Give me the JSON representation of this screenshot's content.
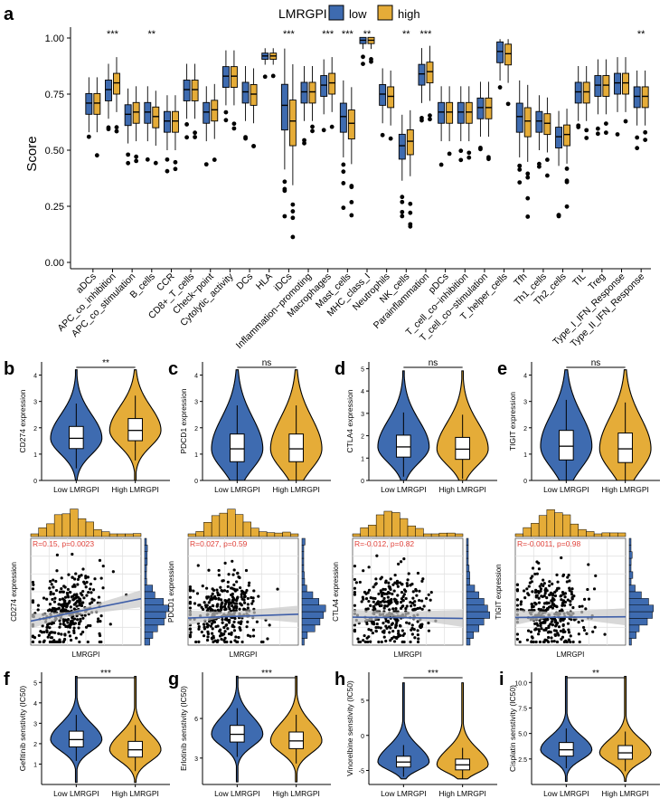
{
  "figure": {
    "panel_labels": [
      "a",
      "b",
      "c",
      "d",
      "e",
      "f",
      "g",
      "h",
      "i"
    ]
  },
  "colors": {
    "low": "#3e6bb0",
    "high": "#e5ac38",
    "stroke": "#000000",
    "fit": "#3e5ea8",
    "band": "#c8c8c8",
    "annot_red": "#e0423a"
  },
  "chart_data": [
    {
      "panel": "a",
      "type": "boxplot",
      "legend_title": "LMRGPI",
      "legend": [
        "low",
        "high"
      ],
      "ylabel": "Score",
      "ylim": [
        0,
        1.05
      ],
      "yticks": [
        "0.00",
        "0.25",
        "0.50",
        "0.75",
        "1.00"
      ],
      "categories": [
        "aDCs",
        "APC_co_inhibition",
        "APC_co_stimulation",
        "B_cells",
        "CCR",
        "CD8+_T_cells",
        "Check−point",
        "Cytolytic_activity",
        "DCs",
        "HLA",
        "iDCs",
        "Inflammation−promoting",
        "Macrophages",
        "Mast_cells",
        "MHC_class_I",
        "Neutrophils",
        "NK_cells",
        "Parainflammation",
        "pDCs",
        "T_cell_co−inhibition",
        "T_cell_co−stimulation",
        "T_helper_cells",
        "Tfh",
        "Th1_cells",
        "Th2_cells",
        "TIL",
        "Treg",
        "Type_I_IFN_Response",
        "Type_II_IFN_Response"
      ],
      "significance": [
        "",
        "***",
        "",
        "**",
        "",
        "",
        "",
        "",
        "",
        "",
        "***",
        "",
        "***",
        "***",
        "**",
        "",
        "**",
        "***",
        "",
        "",
        "",
        "",
        "",
        "",
        "",
        "",
        "",
        "",
        "**"
      ],
      "series": [
        {
          "name": "low",
          "medians": [
            0.71,
            0.77,
            0.66,
            0.67,
            0.63,
            0.77,
            0.67,
            0.83,
            0.76,
            0.92,
            0.7,
            0.76,
            0.79,
            0.65,
            0.99,
            0.75,
            0.52,
            0.84,
            0.67,
            0.67,
            0.69,
            0.94,
            0.65,
            0.63,
            0.56,
            0.76,
            0.79,
            0.8,
            0.74
          ]
        },
        {
          "name": "high",
          "medians": [
            0.71,
            0.8,
            0.67,
            0.65,
            0.63,
            0.77,
            0.68,
            0.83,
            0.75,
            0.92,
            0.63,
            0.76,
            0.8,
            0.62,
            0.99,
            0.74,
            0.54,
            0.85,
            0.67,
            0.67,
            0.69,
            0.93,
            0.63,
            0.62,
            0.57,
            0.76,
            0.79,
            0.8,
            0.74
          ]
        }
      ]
    },
    {
      "panel": "b",
      "type": "violin",
      "groups": [
        "Low LMRGPI",
        "High LMRGPI"
      ],
      "ylabel": "CD274 expression",
      "significance": "**",
      "yticks": [
        "0",
        "1",
        "2",
        "3",
        "4"
      ],
      "ylim": [
        0,
        4.5
      ],
      "medians": [
        1.6,
        1.9
      ]
    },
    {
      "panel": "c",
      "type": "violin",
      "groups": [
        "Low LMRGPI",
        "High LMRGPI"
      ],
      "ylabel": "PDCD1 expression",
      "significance": "ns",
      "yticks": [
        "0",
        "1",
        "2",
        "3",
        "4"
      ],
      "ylim": [
        0,
        4.5
      ],
      "medians": [
        1.2,
        1.2
      ]
    },
    {
      "panel": "d",
      "type": "violin",
      "groups": [
        "Low LMRGPI",
        "High LMRGPI"
      ],
      "ylabel": "CTLA4 expression",
      "significance": "ns",
      "yticks": [
        "0",
        "1",
        "2",
        "3",
        "4",
        "5"
      ],
      "ylim": [
        0,
        5.3
      ],
      "medians": [
        1.5,
        1.4
      ]
    },
    {
      "panel": "e",
      "type": "violin",
      "groups": [
        "Low LMRGPI",
        "High LMRGPI"
      ],
      "ylabel": "TIGIT expression",
      "significance": "ns",
      "yticks": [
        "0",
        "1",
        "2",
        "3",
        "4"
      ],
      "ylim": [
        0,
        4.5
      ],
      "medians": [
        1.3,
        1.2
      ]
    },
    {
      "panel": "b2",
      "type": "scatter",
      "xlabel": "LMRGPI",
      "ylabel": "CD274 expression",
      "annotation": "R=0.15, p=0.0023",
      "R": 0.15,
      "p": 0.0023
    },
    {
      "panel": "c2",
      "type": "scatter",
      "xlabel": "LMRGPI",
      "ylabel": "PDCD1 expression",
      "annotation": "R=0.027, p=0.59",
      "R": 0.027,
      "p": 0.59
    },
    {
      "panel": "d2",
      "type": "scatter",
      "xlabel": "LMRGPI",
      "ylabel": "CTLA4 expression",
      "annotation": "R=-0.012, p=0.82",
      "R": -0.012,
      "p": 0.82
    },
    {
      "panel": "e2",
      "type": "scatter",
      "xlabel": "LMRGPI",
      "ylabel": "TIGIT expression",
      "annotation": "R=-0.0011, p=0.98",
      "R": -0.0011,
      "p": 0.98
    },
    {
      "panel": "f",
      "type": "violin",
      "groups": [
        "Low LMRGPI",
        "High LMRGPI"
      ],
      "ylabel": "Gefitinib senstivity (IC50)",
      "significance": "***",
      "yticks": [
        "1",
        "2",
        "3",
        "4",
        "5"
      ],
      "ylim": [
        0,
        5.5
      ],
      "medians": [
        2.2,
        1.7
      ]
    },
    {
      "panel": "g",
      "type": "violin",
      "groups": [
        "Low LMRGPI",
        "High LMRGPI"
      ],
      "ylabel": "Erlotinib senstivity (IC50)",
      "significance": "***",
      "yticks": [
        "3",
        "6"
      ],
      "ylim": [
        1,
        9.5
      ],
      "medians": [
        4.8,
        4.3
      ]
    },
    {
      "panel": "h",
      "type": "violin",
      "groups": [
        "Low LMRGPI",
        "High LMRGPI"
      ],
      "ylabel": "Vinorelbine senstivity (IC50)",
      "significance": "***",
      "yticks": [
        "-5",
        "0",
        "5"
      ],
      "ylim": [
        -7,
        9
      ],
      "medians": [
        -3.8,
        -4.2
      ]
    },
    {
      "panel": "i",
      "type": "violin",
      "groups": [
        "Low LMRGPI",
        "High LMRGPI"
      ],
      "ylabel": "Cisplatin senstivity (IC50)",
      "significance": "**",
      "yticks": [
        "2.5",
        "5.0",
        "7.5",
        "10.0"
      ],
      "ylim": [
        0,
        11
      ],
      "medians": [
        3.4,
        3.1
      ]
    }
  ]
}
